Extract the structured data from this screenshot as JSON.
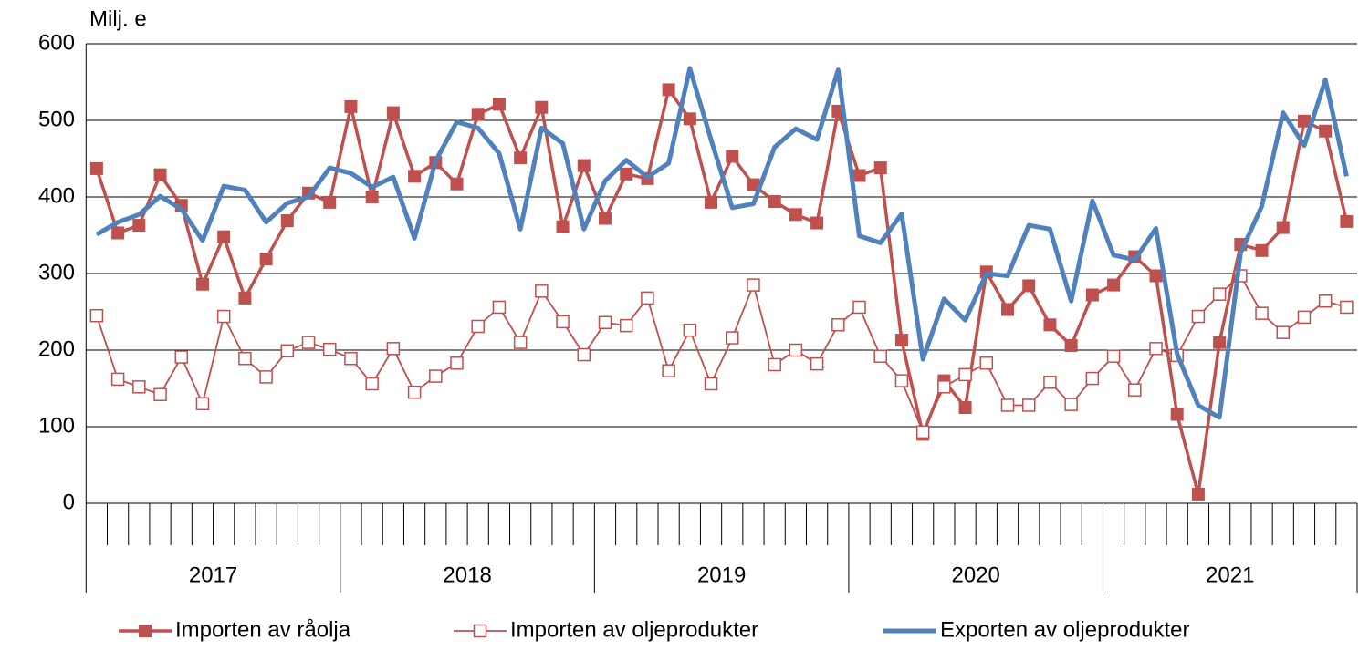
{
  "chart_data": {
    "type": "line",
    "y_label": "Milj. e",
    "categories": [
      null,
      null,
      null,
      null,
      null,
      null,
      null,
      null,
      null,
      null,
      null,
      null,
      null,
      null,
      null,
      null,
      null,
      null,
      null,
      null,
      null,
      null,
      null,
      null,
      null,
      null,
      null,
      null,
      null,
      null,
      null,
      null,
      null,
      null,
      null,
      null,
      null,
      null,
      null,
      null,
      null,
      null,
      null,
      null,
      null,
      null,
      null,
      null,
      null,
      null,
      null,
      null,
      null,
      null,
      null,
      null,
      null,
      null,
      null,
      null
    ],
    "year_labels": [
      "2017",
      "2018",
      "2019",
      "2020",
      "2021"
    ],
    "ylim": [
      0,
      600
    ],
    "yticks": [
      0,
      100,
      200,
      300,
      400,
      500,
      600
    ],
    "grid": true,
    "legend": "bottom",
    "series": [
      {
        "name": "Importen av råolja",
        "color": "#c0504d",
        "marker": "filled-square",
        "values": [
          437,
          353,
          363,
          429,
          389,
          286,
          348,
          268,
          319,
          369,
          405,
          393,
          518,
          400,
          510,
          427,
          445,
          417,
          508,
          521,
          451,
          517,
          361,
          441,
          372,
          430,
          424,
          540,
          502,
          393,
          453,
          416,
          394,
          377,
          366,
          512,
          428,
          438,
          213,
          90,
          160,
          125,
          302,
          253,
          284,
          233,
          206,
          272,
          285,
          322,
          297,
          116,
          12,
          210,
          338,
          330,
          360,
          499,
          486,
          368
        ]
      },
      {
        "name": "Importen av oljeprodukter",
        "color": "#c0504d",
        "marker": "open-square",
        "values": [
          245,
          162,
          152,
          142,
          191,
          130,
          244,
          189,
          165,
          199,
          210,
          201,
          189,
          156,
          202,
          145,
          166,
          183,
          231,
          256,
          210,
          277,
          237,
          194,
          236,
          232,
          268,
          173,
          226,
          156,
          216,
          285,
          181,
          200,
          182,
          233,
          256,
          192,
          160,
          93,
          152,
          168,
          183,
          128,
          128,
          158,
          129,
          163,
          192,
          148,
          202,
          193,
          244,
          273,
          297,
          248,
          223,
          243,
          264,
          256
        ]
      },
      {
        "name": "Exporten av oljeprodukter",
        "color": "#4f81bd",
        "marker": "none",
        "values": [
          351,
          367,
          377,
          401,
          384,
          343,
          414,
          409,
          367,
          392,
          400,
          438,
          431,
          413,
          426,
          346,
          447,
          498,
          490,
          457,
          358,
          490,
          470,
          358,
          421,
          448,
          426,
          444,
          568,
          475,
          386,
          391,
          465,
          489,
          475,
          566,
          349,
          340,
          378,
          188,
          267,
          239,
          300,
          297,
          363,
          358,
          264,
          395,
          324,
          318,
          359,
          195,
          128,
          112,
          327,
          388,
          510,
          467,
          553,
          427
        ]
      }
    ]
  }
}
